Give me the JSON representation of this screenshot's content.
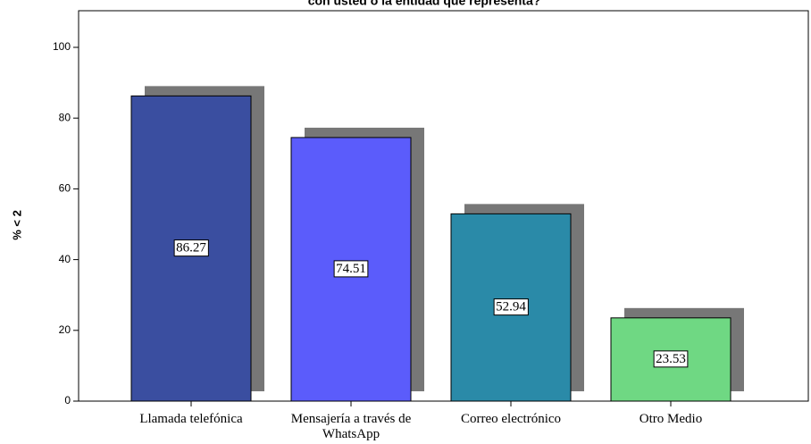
{
  "chart_data": {
    "type": "bar",
    "title": "con usted o la entidad que representa?",
    "y_label": "% < 2",
    "categories": [
      "Llamada telefónica",
      "Mensajería a través de WhatsApp",
      "Correo electrónico",
      "Otro Medio"
    ],
    "values": [
      86.27,
      74.51,
      52.94,
      23.53
    ],
    "colors": [
      "#3a4ea0",
      "#5b5cfb",
      "#2a8aa8",
      "#6fd883"
    ],
    "shadow_color": "#777777",
    "ylim": [
      0,
      100
    ],
    "yticks": [
      0,
      20,
      40,
      60,
      80,
      100
    ]
  }
}
